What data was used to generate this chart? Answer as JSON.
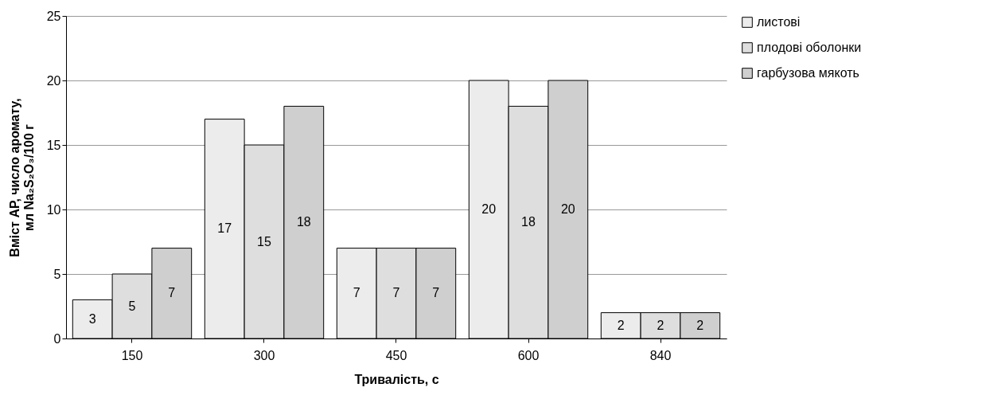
{
  "chart_data": {
    "type": "bar",
    "xlabel": "Тривалість, с",
    "ylabel": "Вміст АР, число аромату, мл Na₂S₂O₃/100 г",
    "categories": [
      "150",
      "300",
      "450",
      "600",
      "840"
    ],
    "series": [
      {
        "name": "листові",
        "color": "#ececec",
        "values": [
          3,
          17,
          7,
          20,
          2
        ]
      },
      {
        "name": "плодові оболонки",
        "color": "#dedede",
        "values": [
          5,
          15,
          7,
          18,
          2
        ]
      },
      {
        "name": "гарбузова мякоть",
        "color": "#cfcfcf",
        "values": [
          7,
          18,
          7,
          20,
          2
        ]
      }
    ],
    "ylim": [
      0,
      25
    ],
    "yticks": [
      0,
      5,
      10,
      15,
      20,
      25
    ],
    "grid": "y",
    "legend": "right",
    "data_labels": true
  }
}
